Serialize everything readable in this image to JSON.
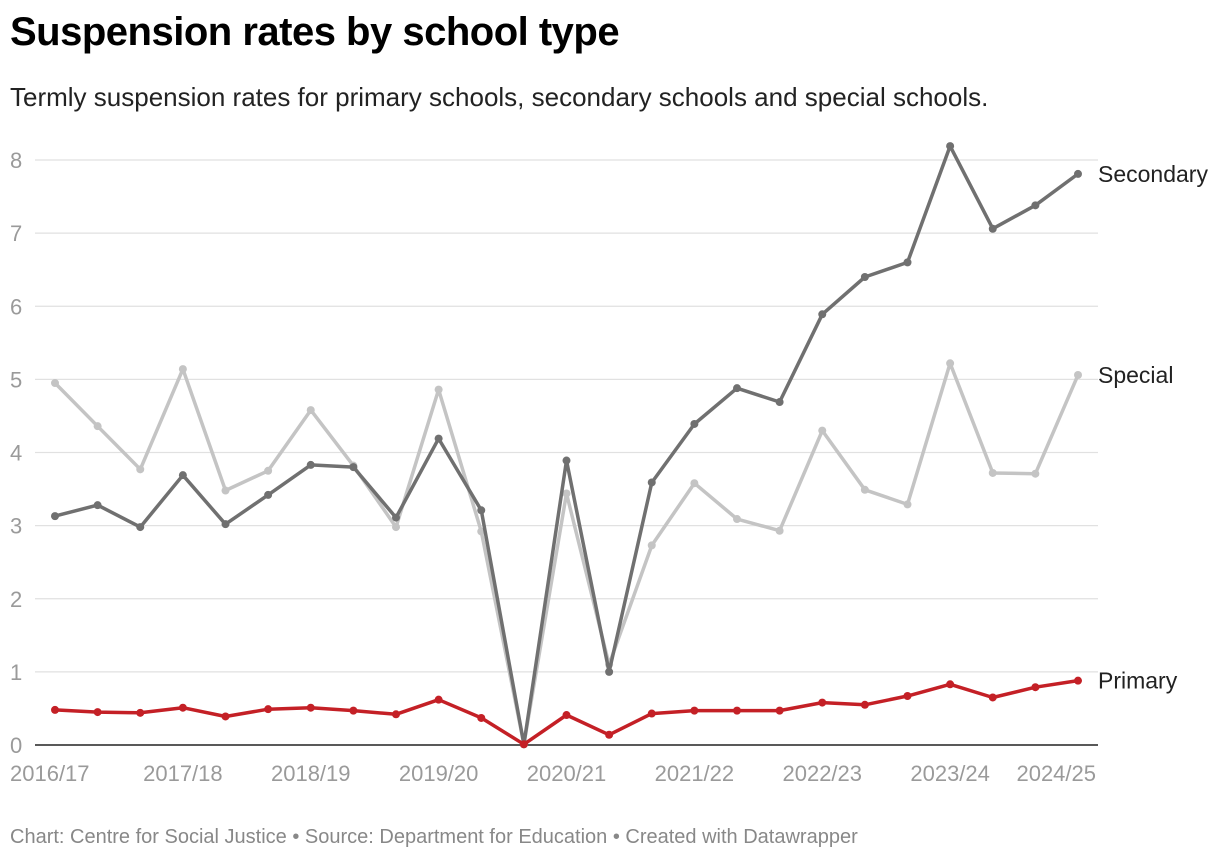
{
  "chart_data": {
    "type": "line",
    "title": "Suspension rates by school type",
    "subtitle": "Termly suspension rates for primary schools, secondary schools and special schools.",
    "xlabel": "",
    "ylabel": "",
    "ylim": [
      0,
      8
    ],
    "yticks": [
      "0",
      "1",
      "2",
      "3",
      "4",
      "5",
      "6",
      "7",
      "8"
    ],
    "xtick_labels": [
      "2016/17",
      "2017/18",
      "2018/19",
      "2019/20",
      "2020/21",
      "2021/22",
      "2022/23",
      "2023/24",
      "2024/25"
    ],
    "x": [
      "2016/17 T1",
      "2016/17 T2",
      "2016/17 T3",
      "2017/18 T1",
      "2017/18 T2",
      "2017/18 T3",
      "2018/19 T1",
      "2018/19 T2",
      "2018/19 T3",
      "2019/20 T1",
      "2019/20 T2",
      "2019/20 T3",
      "2020/21 T1",
      "2020/21 T2",
      "2020/21 T3",
      "2021/22 T1",
      "2021/22 T2",
      "2021/22 T3",
      "2022/23 T1",
      "2022/23 T2",
      "2022/23 T3",
      "2023/24 T1",
      "2023/24 T2",
      "2023/24 T3",
      "2024/25 T1"
    ],
    "grid": true,
    "series": [
      {
        "name": "Special",
        "label": "Special",
        "color": "#c4c4c4",
        "values": [
          4.95,
          4.36,
          3.77,
          5.14,
          3.48,
          3.75,
          4.58,
          3.82,
          2.98,
          4.86,
          2.92,
          0.01,
          3.44,
          1.1,
          2.73,
          3.58,
          3.09,
          2.93,
          4.3,
          3.49,
          3.29,
          5.22,
          3.72,
          3.71,
          5.06
        ]
      },
      {
        "name": "Secondary",
        "label": "Secondary",
        "color": "#707070",
        "values": [
          3.13,
          3.28,
          2.98,
          3.69,
          3.02,
          3.42,
          3.83,
          3.8,
          3.11,
          4.19,
          3.21,
          0.01,
          3.89,
          1.0,
          3.59,
          4.39,
          4.88,
          4.69,
          5.89,
          6.4,
          6.6,
          8.19,
          7.06,
          7.38,
          7.81
        ]
      },
      {
        "name": "Primary",
        "label": "Primary",
        "color": "#c42026",
        "values": [
          0.48,
          0.45,
          0.44,
          0.51,
          0.39,
          0.49,
          0.51,
          0.47,
          0.42,
          0.62,
          0.37,
          0.01,
          0.41,
          0.14,
          0.43,
          0.47,
          0.47,
          0.47,
          0.58,
          0.55,
          0.67,
          0.83,
          0.65,
          0.79,
          0.88
        ]
      }
    ]
  },
  "footer": "Chart: Centre for Social Justice • Source: Department for Education • Created with Datawrapper"
}
